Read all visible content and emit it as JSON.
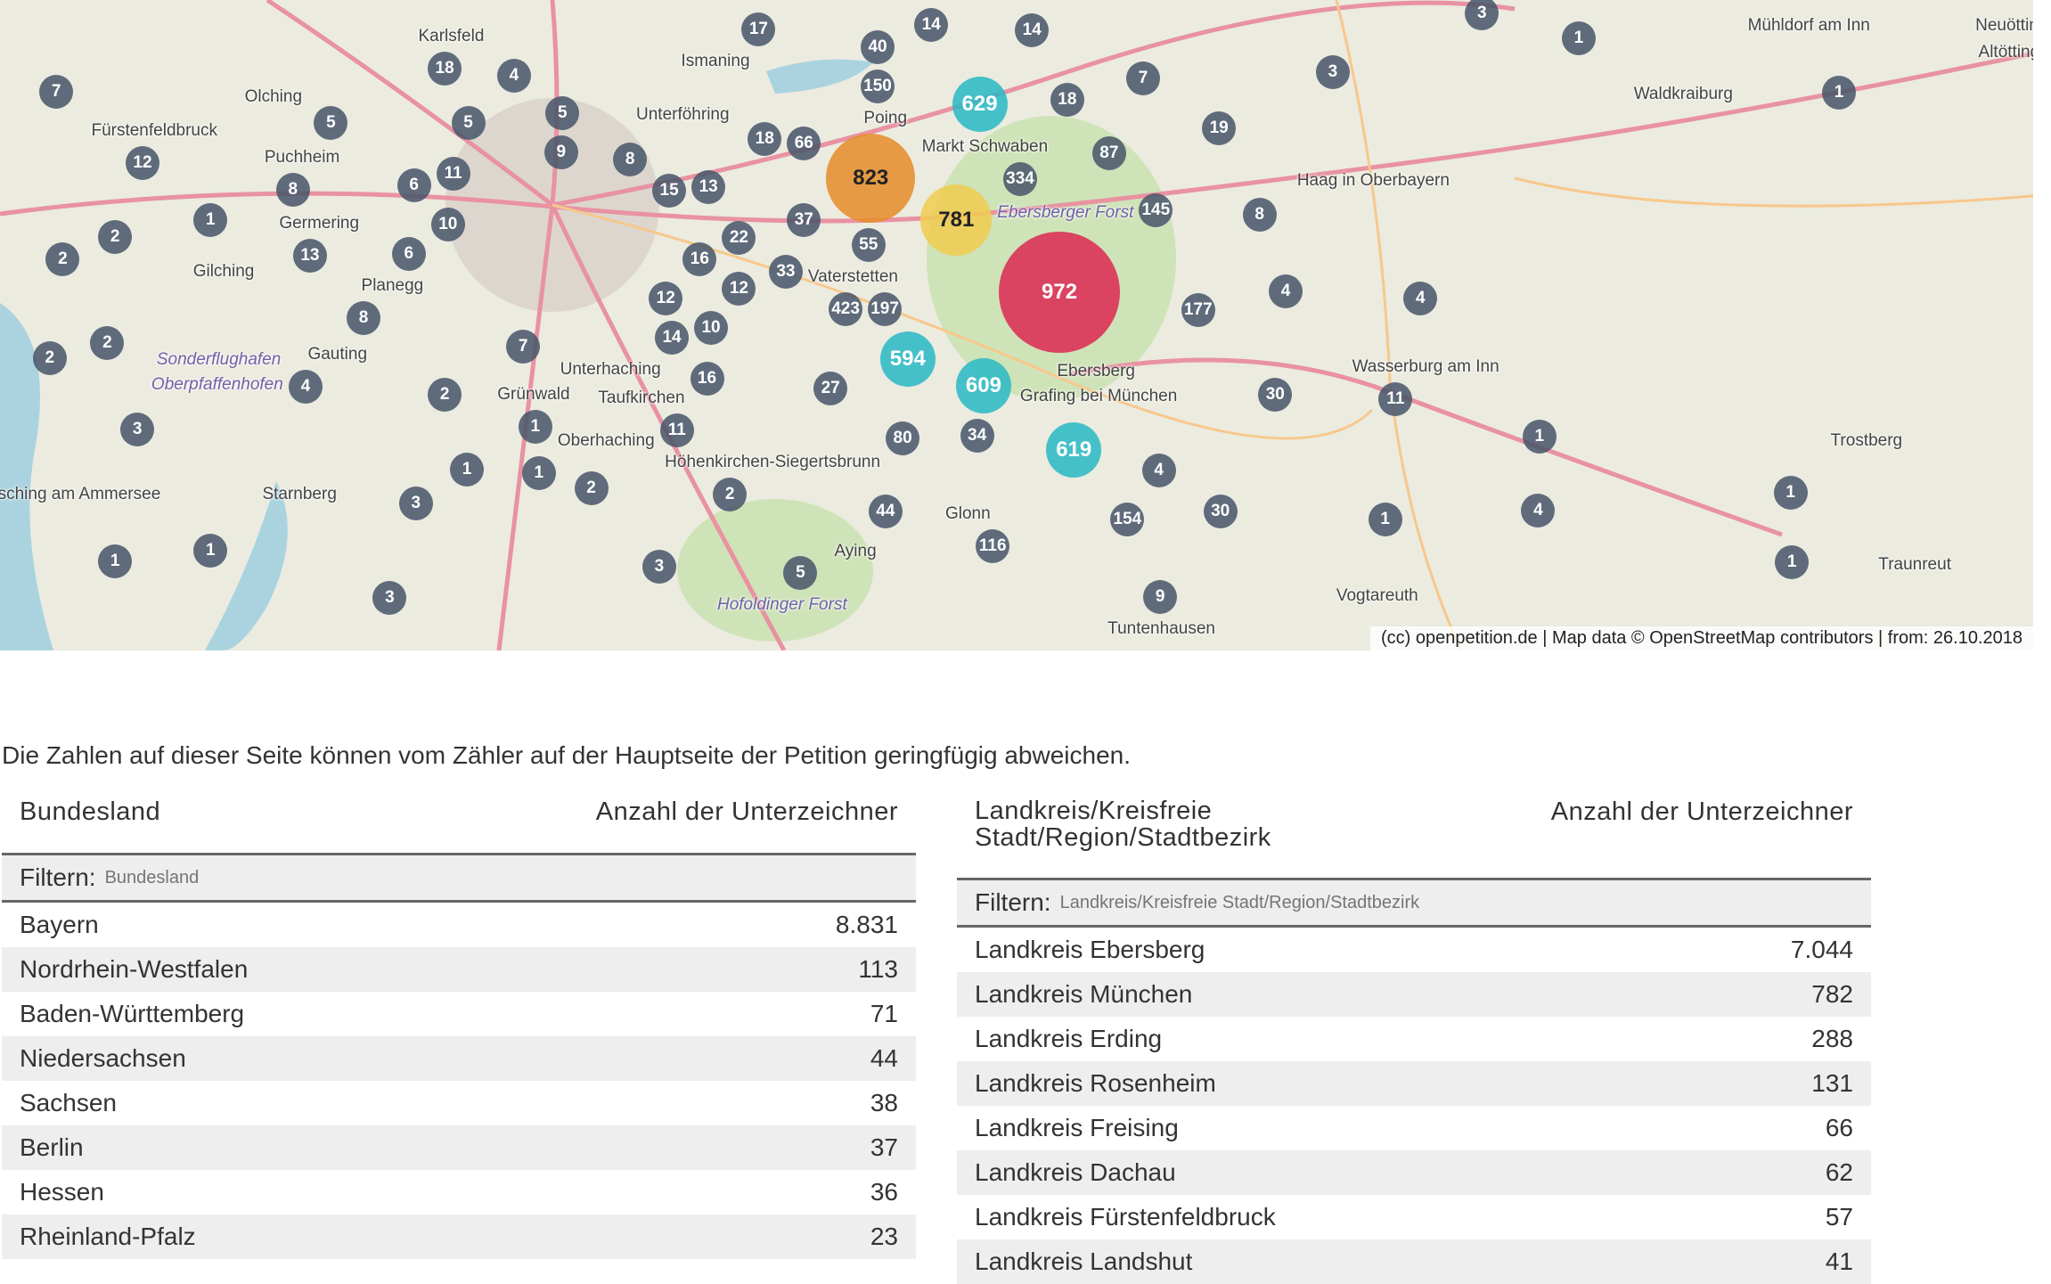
{
  "map": {
    "attribution": "(cc) openpetition.de | Map data © OpenStreetMap contributors | from: 26.10.2018",
    "colors": {
      "small": "#465569",
      "medium": "#28b9c3",
      "yellow": "#f0cd50",
      "orange": "#e68c28",
      "large": "#dc2850",
      "water": "#aad3df",
      "forest": "#cfe3b8"
    },
    "places": [
      "Karlsfeld",
      "Ismaning",
      "Unterföhring",
      "Olching",
      "Fürstenfeldbruck",
      "Puchheim",
      "Germering",
      "Gilching",
      "Planegg",
      "Gauting",
      "Sonderflughafen",
      "Oberpfaffenhofen",
      "Herrsching am Ammersee",
      "Starnberg",
      "Grünwald",
      "Taufkirchen",
      "Oberhaching",
      "Höhenkirchen-Siegertsbrunn",
      "Unterhaching",
      "Aying",
      "Hofoldinger Forst",
      "Glonn",
      "Grafing bei München",
      "Ebersberg",
      "Ebersberger Forst",
      "Markt Schwaben",
      "Poing",
      "Vaterstetten",
      "Haag in Oberbayern",
      "Waldkraiburg",
      "Mühldorf am Inn",
      "Wasserburg am Inn",
      "Trostberg",
      "Traunreut",
      "Vogtareuth",
      "Tuntenhausen",
      "Neuötting",
      "Altötting"
    ],
    "clusters": [
      972,
      823,
      781,
      629,
      619,
      609,
      594,
      423,
      334,
      197,
      177,
      154,
      150,
      145,
      116,
      87,
      80,
      66,
      55,
      44,
      40,
      37,
      34,
      33,
      30,
      30,
      27,
      22,
      19,
      18,
      18,
      18,
      17,
      16,
      16,
      15,
      14,
      14,
      14,
      13,
      13,
      12,
      12,
      12,
      11,
      11,
      11,
      10,
      10,
      9,
      9,
      8,
      8,
      8,
      8,
      7,
      7,
      7,
      6,
      6,
      5,
      5,
      5,
      5,
      4,
      4,
      4,
      4,
      4,
      4,
      3,
      3,
      3,
      3,
      3,
      3,
      2,
      2,
      2,
      2,
      2,
      2,
      2,
      1,
      1,
      1,
      1,
      1,
      1,
      1,
      1,
      1,
      1,
      1,
      1
    ]
  },
  "notice": "Die Zahlen auf dieser Seite können vom Zähler auf der Hauptseite der Petition geringfügig abweichen.",
  "table_states": {
    "col1": "Bundesland",
    "col2": "Anzahl der Unterzeichner",
    "filter_label": "Filtern:",
    "filter_placeholder": "Bundesland",
    "rows": [
      {
        "name": "Bayern",
        "count": "8.831"
      },
      {
        "name": "Nordrhein-Westfalen",
        "count": "113"
      },
      {
        "name": "Baden-Württemberg",
        "count": "71"
      },
      {
        "name": "Niedersachsen",
        "count": "44"
      },
      {
        "name": "Sachsen",
        "count": "38"
      },
      {
        "name": "Berlin",
        "count": "37"
      },
      {
        "name": "Hessen",
        "count": "36"
      },
      {
        "name": "Rheinland-Pfalz",
        "count": "23"
      }
    ]
  },
  "table_districts": {
    "col1_line1": "Landkreis/Kreisfreie",
    "col1_line2": "Stadt/Region/Stadtbezirk",
    "col2": "Anzahl der Unterzeichner",
    "filter_label": "Filtern:",
    "filter_placeholder": "Landkreis/Kreisfreie Stadt/Region/Stadtbezirk",
    "rows": [
      {
        "name": "Landkreis Ebersberg",
        "count": "7.044"
      },
      {
        "name": "Landkreis München",
        "count": "782"
      },
      {
        "name": "Landkreis Erding",
        "count": "288"
      },
      {
        "name": "Landkreis Rosenheim",
        "count": "131"
      },
      {
        "name": "Landkreis Freising",
        "count": "66"
      },
      {
        "name": "Landkreis Dachau",
        "count": "62"
      },
      {
        "name": "Landkreis Fürstenfeldbruck",
        "count": "57"
      },
      {
        "name": "Landkreis Landshut",
        "count": "41"
      }
    ]
  }
}
